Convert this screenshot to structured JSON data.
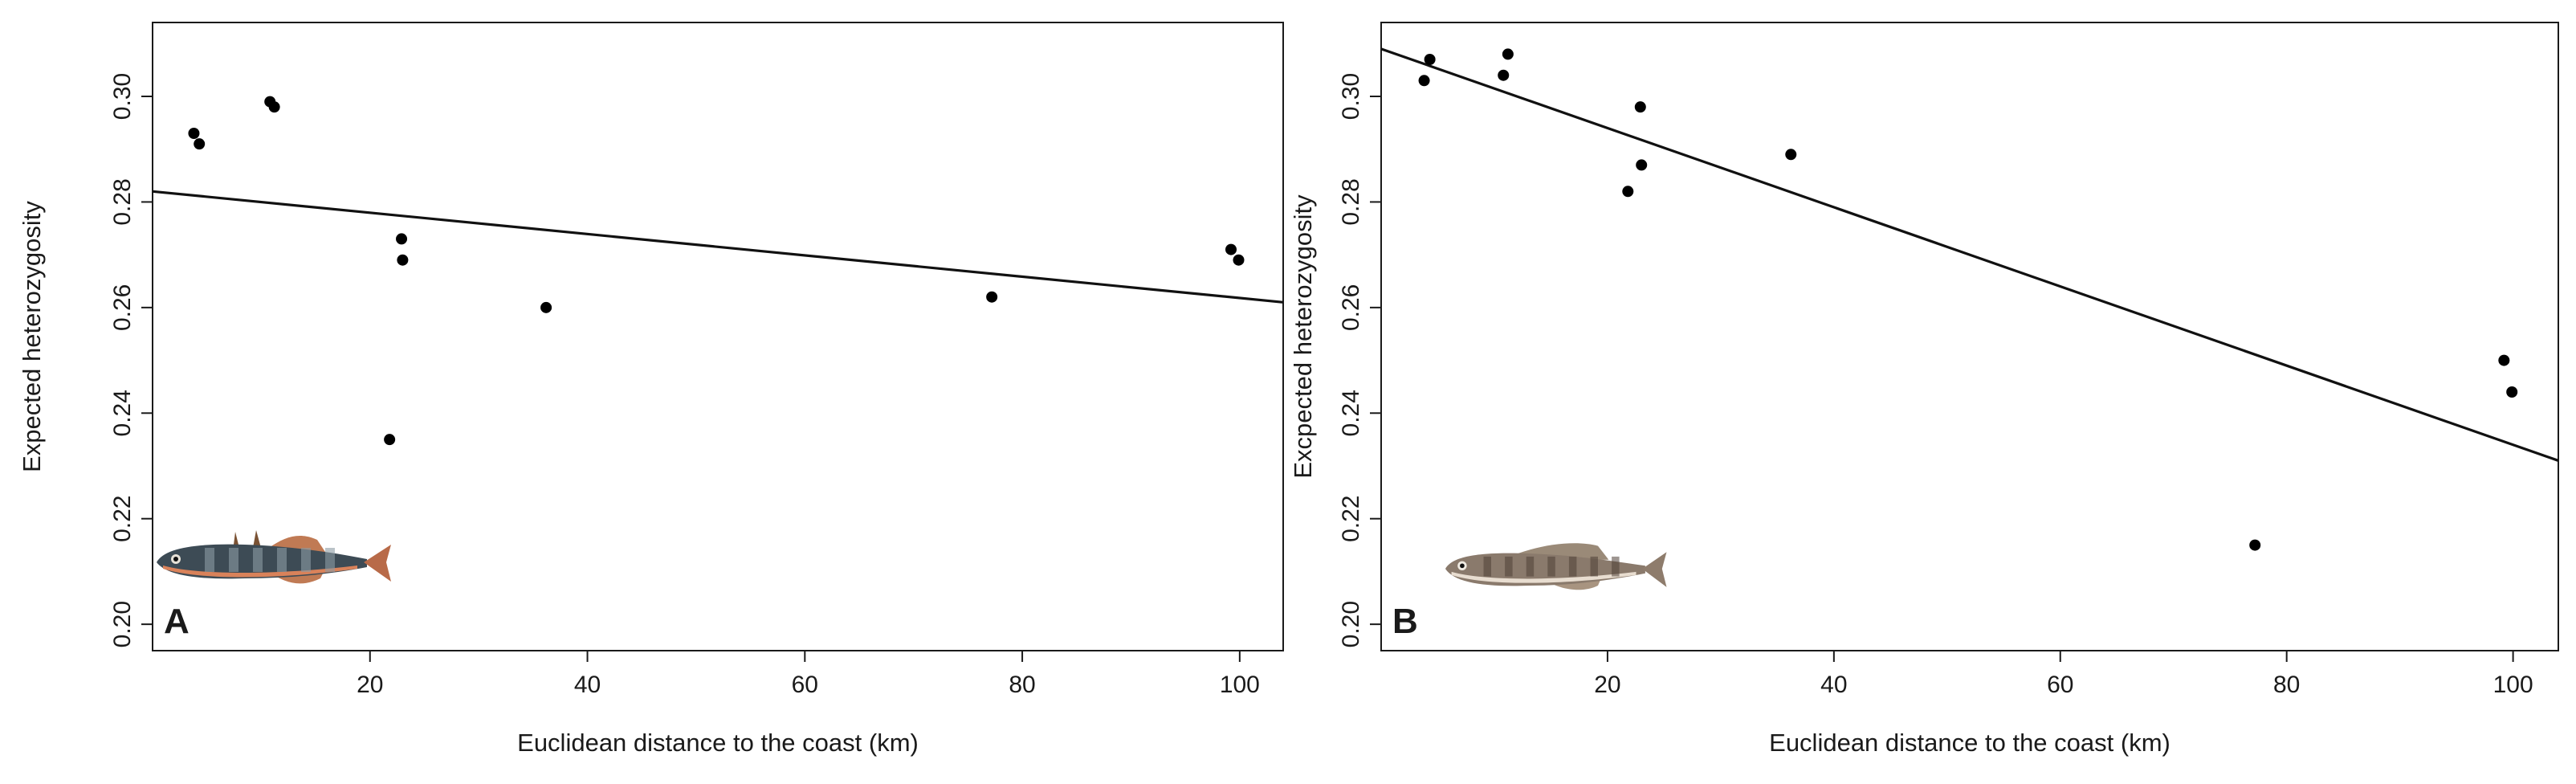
{
  "chart_data": [
    {
      "type": "scatter",
      "panel_label": "A",
      "xlabel": "Euclidean distance to the coast (km)",
      "ylabel": "Expected heterozygosity",
      "xlim": [
        0,
        104
      ],
      "ylim": [
        0.195,
        0.314
      ],
      "xticks": [
        20,
        40,
        60,
        80,
        100
      ],
      "yticks": [
        0.2,
        0.22,
        0.24,
        0.26,
        0.28,
        0.3
      ],
      "ytick_labels": [
        "0.20",
        "0.22",
        "0.24",
        "0.26",
        "0.28",
        "0.30"
      ],
      "grid": false,
      "points": [
        {
          "x": 3.8,
          "y": 0.293
        },
        {
          "x": 4.3,
          "y": 0.291
        },
        {
          "x": 10.8,
          "y": 0.299
        },
        {
          "x": 11.2,
          "y": 0.298
        },
        {
          "x": 21.8,
          "y": 0.235
        },
        {
          "x": 22.9,
          "y": 0.273
        },
        {
          "x": 23.0,
          "y": 0.269
        },
        {
          "x": 36.2,
          "y": 0.26
        },
        {
          "x": 77.2,
          "y": 0.262
        },
        {
          "x": 99.2,
          "y": 0.271
        },
        {
          "x": 99.9,
          "y": 0.269
        }
      ],
      "fit_line": {
        "x": [
          0,
          104
        ],
        "y": [
          0.282,
          0.261
        ]
      },
      "illustration": "three-spined-stickleback-icon"
    },
    {
      "type": "scatter",
      "panel_label": "B",
      "xlabel": "Euclidean distance to the coast (km)",
      "ylabel": "Excpected heterozygosity",
      "xlim": [
        0,
        104
      ],
      "ylim": [
        0.195,
        0.314
      ],
      "xticks": [
        20,
        40,
        60,
        80,
        100
      ],
      "yticks": [
        0.2,
        0.22,
        0.24,
        0.26,
        0.28,
        0.3
      ],
      "ytick_labels": [
        "0.20",
        "0.22",
        "0.24",
        "0.26",
        "0.28",
        "0.30"
      ],
      "grid": false,
      "points": [
        {
          "x": 3.8,
          "y": 0.303
        },
        {
          "x": 4.3,
          "y": 0.307
        },
        {
          "x": 10.8,
          "y": 0.304
        },
        {
          "x": 11.2,
          "y": 0.308
        },
        {
          "x": 21.8,
          "y": 0.282
        },
        {
          "x": 22.9,
          "y": 0.298
        },
        {
          "x": 23.0,
          "y": 0.287
        },
        {
          "x": 36.2,
          "y": 0.289
        },
        {
          "x": 77.2,
          "y": 0.215
        },
        {
          "x": 99.2,
          "y": 0.25
        },
        {
          "x": 99.9,
          "y": 0.244
        }
      ],
      "fit_line": {
        "x": [
          0,
          104
        ],
        "y": [
          0.309,
          0.231
        ]
      },
      "illustration": "nine-spined-stickleback-icon"
    }
  ]
}
